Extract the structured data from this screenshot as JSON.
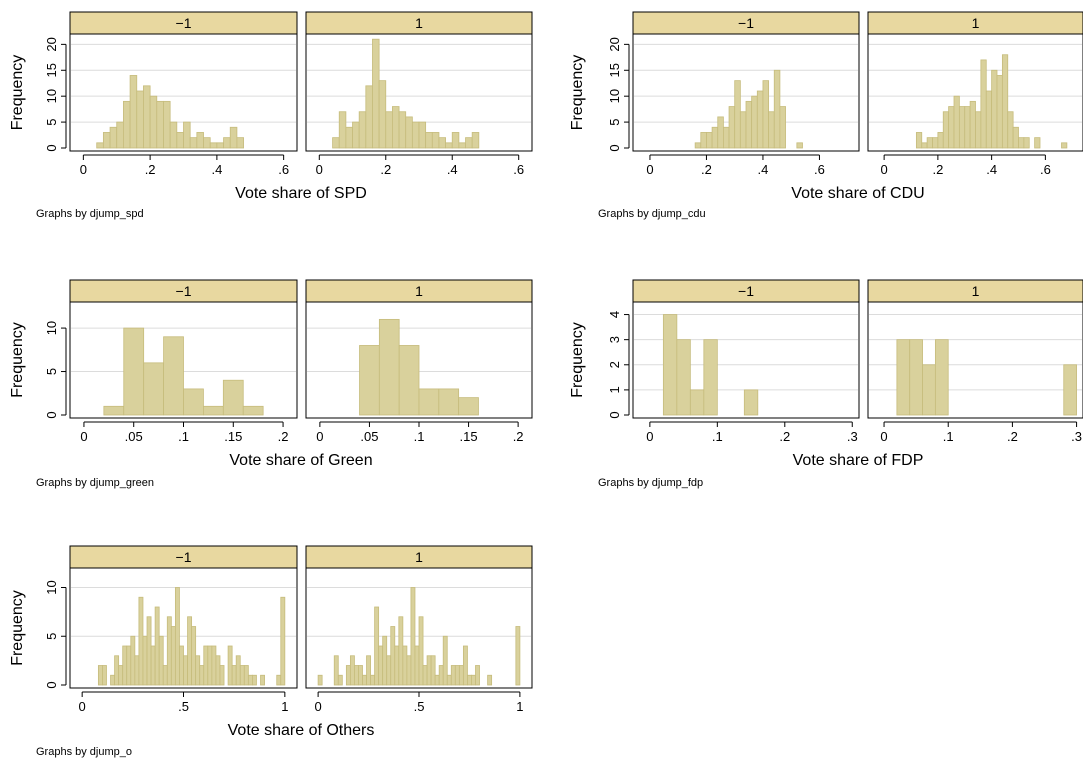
{
  "colors": {
    "bar_fill": "#d9d19c",
    "bar_stroke": "#c6bc7c",
    "strip_fill": "#e8d8a0",
    "grid": "#dcdcdc",
    "axis": "#000000"
  },
  "chart_data": [
    {
      "type": "bar",
      "title": "",
      "xlabel": "Vote share of SPD",
      "ylabel": "Frequency",
      "note": "Graphs by djump_spd",
      "xlim": [
        -0.04,
        0.64
      ],
      "ylim": [
        0,
        22
      ],
      "xticks": [
        0,
        0.2,
        0.4,
        0.6
      ],
      "xtick_labels": [
        "0",
        ".2",
        ".4",
        ".6"
      ],
      "yticks": [
        0,
        5,
        10,
        15,
        20
      ],
      "grid": true,
      "bin_width": 0.02,
      "panels": [
        {
          "label": "−1",
          "bins": [
            [
              0.04,
              1
            ],
            [
              0.06,
              3
            ],
            [
              0.08,
              4
            ],
            [
              0.1,
              5
            ],
            [
              0.12,
              9
            ],
            [
              0.14,
              14
            ],
            [
              0.16,
              11
            ],
            [
              0.18,
              12
            ],
            [
              0.2,
              10
            ],
            [
              0.22,
              9
            ],
            [
              0.24,
              9
            ],
            [
              0.26,
              5
            ],
            [
              0.28,
              3
            ],
            [
              0.3,
              5
            ],
            [
              0.32,
              2
            ],
            [
              0.34,
              3
            ],
            [
              0.36,
              2
            ],
            [
              0.38,
              1
            ],
            [
              0.4,
              1
            ],
            [
              0.42,
              2
            ],
            [
              0.44,
              4
            ],
            [
              0.46,
              2
            ]
          ]
        },
        {
          "label": "1",
          "bins": [
            [
              0.04,
              2
            ],
            [
              0.06,
              7
            ],
            [
              0.08,
              4
            ],
            [
              0.1,
              5
            ],
            [
              0.12,
              7
            ],
            [
              0.14,
              12
            ],
            [
              0.16,
              21
            ],
            [
              0.18,
              13
            ],
            [
              0.2,
              7
            ],
            [
              0.22,
              8
            ],
            [
              0.24,
              7
            ],
            [
              0.26,
              6
            ],
            [
              0.28,
              5
            ],
            [
              0.3,
              5
            ],
            [
              0.32,
              3
            ],
            [
              0.34,
              3
            ],
            [
              0.36,
              2
            ],
            [
              0.38,
              1
            ],
            [
              0.4,
              3
            ],
            [
              0.42,
              1
            ],
            [
              0.44,
              2
            ],
            [
              0.46,
              3
            ]
          ]
        }
      ]
    },
    {
      "type": "bar",
      "title": "",
      "xlabel": "Vote share of CDU",
      "ylabel": "Frequency",
      "note": "Graphs by djump_cdu",
      "xlim": [
        -0.06,
        0.74
      ],
      "ylim": [
        0,
        22
      ],
      "xticks": [
        0,
        0.2,
        0.4,
        0.6
      ],
      "xtick_labels": [
        "0",
        ".2",
        ".4",
        ".6"
      ],
      "yticks": [
        0,
        5,
        10,
        15,
        20
      ],
      "grid": true,
      "bin_width": 0.02,
      "panels": [
        {
          "label": "−1",
          "bins": [
            [
              0.16,
              1
            ],
            [
              0.18,
              3
            ],
            [
              0.2,
              3
            ],
            [
              0.22,
              4
            ],
            [
              0.24,
              6
            ],
            [
              0.26,
              4
            ],
            [
              0.28,
              8
            ],
            [
              0.3,
              13
            ],
            [
              0.32,
              7
            ],
            [
              0.34,
              9
            ],
            [
              0.36,
              10
            ],
            [
              0.38,
              11
            ],
            [
              0.4,
              13
            ],
            [
              0.42,
              7
            ],
            [
              0.44,
              15
            ],
            [
              0.46,
              8
            ],
            [
              0.52,
              1
            ]
          ]
        },
        {
          "label": "1",
          "bins": [
            [
              0.12,
              3
            ],
            [
              0.14,
              1
            ],
            [
              0.16,
              2
            ],
            [
              0.18,
              2
            ],
            [
              0.2,
              3
            ],
            [
              0.22,
              7
            ],
            [
              0.24,
              8
            ],
            [
              0.26,
              10
            ],
            [
              0.28,
              8
            ],
            [
              0.3,
              8
            ],
            [
              0.32,
              9
            ],
            [
              0.34,
              7
            ],
            [
              0.36,
              17
            ],
            [
              0.38,
              11
            ],
            [
              0.4,
              15
            ],
            [
              0.42,
              14
            ],
            [
              0.44,
              18
            ],
            [
              0.46,
              7
            ],
            [
              0.48,
              4
            ],
            [
              0.5,
              2
            ],
            [
              0.52,
              2
            ],
            [
              0.56,
              2
            ],
            [
              0.66,
              1
            ]
          ]
        }
      ]
    },
    {
      "type": "bar",
      "title": "",
      "xlabel": "Vote share of Green",
      "ylabel": "Frequency",
      "note": "Graphs by djump_green",
      "xlim": [
        -0.014,
        0.214
      ],
      "ylim": [
        0,
        13
      ],
      "xticks": [
        0,
        0.05,
        0.1,
        0.15,
        0.2
      ],
      "xtick_labels": [
        "0",
        ".05",
        ".1",
        ".15",
        ".2"
      ],
      "yticks": [
        0,
        5,
        10
      ],
      "grid": true,
      "bin_width": 0.02,
      "panels": [
        {
          "label": "−1",
          "bins": [
            [
              0.02,
              1
            ],
            [
              0.04,
              10
            ],
            [
              0.06,
              6
            ],
            [
              0.08,
              9
            ],
            [
              0.1,
              3
            ],
            [
              0.12,
              1
            ],
            [
              0.14,
              4
            ],
            [
              0.16,
              1
            ]
          ]
        },
        {
          "label": "1",
          "bins": [
            [
              0.04,
              8
            ],
            [
              0.06,
              11
            ],
            [
              0.08,
              8
            ],
            [
              0.1,
              3
            ],
            [
              0.12,
              3
            ],
            [
              0.14,
              2
            ]
          ]
        }
      ]
    },
    {
      "type": "bar",
      "title": "",
      "xlabel": "Vote share of FDP",
      "ylabel": "Frequency",
      "note": "Graphs by djump_fdp",
      "xlim": [
        -0.025,
        0.31
      ],
      "ylim": [
        0,
        4.5
      ],
      "xticks": [
        0,
        0.1,
        0.2,
        0.3
      ],
      "xtick_labels": [
        "0",
        ".1",
        ".2",
        ".3"
      ],
      "yticks": [
        0,
        1,
        2,
        3,
        4
      ],
      "grid": true,
      "bin_width": 0.02,
      "panels": [
        {
          "label": "−1",
          "bins": [
            [
              0.02,
              4
            ],
            [
              0.04,
              3
            ],
            [
              0.06,
              1
            ],
            [
              0.08,
              3
            ],
            [
              0.14,
              1
            ]
          ]
        },
        {
          "label": "1",
          "bins": [
            [
              0.02,
              3
            ],
            [
              0.04,
              3
            ],
            [
              0.06,
              2
            ],
            [
              0.08,
              3
            ],
            [
              0.28,
              2
            ]
          ]
        }
      ]
    },
    {
      "type": "bar",
      "title": "",
      "xlabel": "Vote share of Others",
      "ylabel": "Frequency",
      "note": "Graphs by djump_o",
      "xlim": [
        -0.06,
        1.06
      ],
      "ylim": [
        0,
        12
      ],
      "xticks": [
        0,
        0.5,
        1
      ],
      "xtick_labels": [
        "0",
        ".5",
        "1"
      ],
      "yticks": [
        0,
        5,
        10
      ],
      "grid": true,
      "bin_width": 0.02,
      "panels": [
        {
          "label": "−1",
          "bins": [
            [
              0.08,
              2
            ],
            [
              0.1,
              2
            ],
            [
              0.14,
              1
            ],
            [
              0.16,
              3
            ],
            [
              0.18,
              2
            ],
            [
              0.2,
              4
            ],
            [
              0.22,
              4
            ],
            [
              0.24,
              5
            ],
            [
              0.26,
              3
            ],
            [
              0.28,
              9
            ],
            [
              0.3,
              5
            ],
            [
              0.32,
              7
            ],
            [
              0.34,
              4
            ],
            [
              0.36,
              8
            ],
            [
              0.38,
              5
            ],
            [
              0.4,
              2
            ],
            [
              0.42,
              7
            ],
            [
              0.44,
              6
            ],
            [
              0.46,
              10
            ],
            [
              0.48,
              4
            ],
            [
              0.5,
              3
            ],
            [
              0.52,
              7
            ],
            [
              0.54,
              6
            ],
            [
              0.56,
              3
            ],
            [
              0.58,
              2
            ],
            [
              0.6,
              4
            ],
            [
              0.62,
              4
            ],
            [
              0.64,
              4
            ],
            [
              0.66,
              3
            ],
            [
              0.68,
              2
            ],
            [
              0.72,
              4
            ],
            [
              0.74,
              2
            ],
            [
              0.76,
              3
            ],
            [
              0.78,
              2
            ],
            [
              0.8,
              2
            ],
            [
              0.82,
              1
            ],
            [
              0.84,
              1
            ],
            [
              0.88,
              1
            ],
            [
              0.96,
              1
            ],
            [
              0.98,
              9
            ]
          ]
        },
        {
          "label": "1",
          "bins": [
            [
              0.0,
              1
            ],
            [
              0.08,
              3
            ],
            [
              0.1,
              1
            ],
            [
              0.14,
              2
            ],
            [
              0.16,
              3
            ],
            [
              0.18,
              2
            ],
            [
              0.2,
              2
            ],
            [
              0.22,
              1
            ],
            [
              0.24,
              3
            ],
            [
              0.26,
              1
            ],
            [
              0.28,
              8
            ],
            [
              0.3,
              4
            ],
            [
              0.32,
              5
            ],
            [
              0.34,
              3
            ],
            [
              0.36,
              6
            ],
            [
              0.38,
              4
            ],
            [
              0.4,
              7
            ],
            [
              0.42,
              4
            ],
            [
              0.44,
              3
            ],
            [
              0.46,
              10
            ],
            [
              0.48,
              4
            ],
            [
              0.5,
              7
            ],
            [
              0.52,
              2
            ],
            [
              0.54,
              3
            ],
            [
              0.56,
              3
            ],
            [
              0.58,
              1
            ],
            [
              0.6,
              2
            ],
            [
              0.62,
              5
            ],
            [
              0.64,
              1
            ],
            [
              0.66,
              2
            ],
            [
              0.68,
              2
            ],
            [
              0.7,
              2
            ],
            [
              0.72,
              4
            ],
            [
              0.74,
              1
            ],
            [
              0.76,
              1
            ],
            [
              0.78,
              2
            ],
            [
              0.84,
              1
            ],
            [
              0.98,
              6
            ]
          ]
        }
      ]
    }
  ]
}
